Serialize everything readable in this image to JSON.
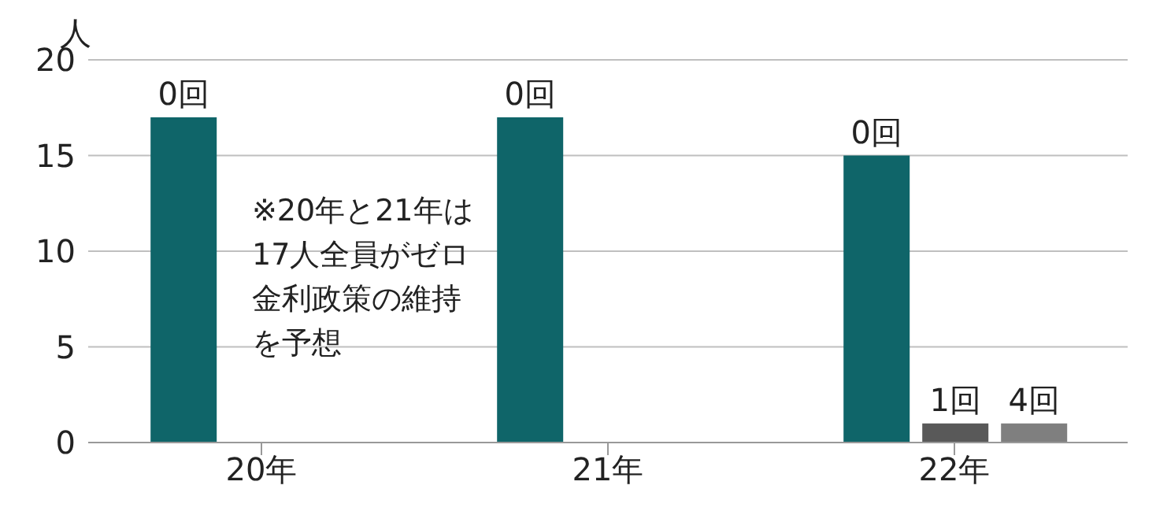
{
  "chart_data": {
    "type": "bar",
    "ylabel": "人",
    "categories": [
      "20年",
      "21年",
      "22年"
    ],
    "series": [
      {
        "name": "0回",
        "color": "#0f6569",
        "values": [
          17,
          17,
          15
        ]
      },
      {
        "name": "1回",
        "color": "#595959",
        "values": [
          null,
          null,
          1
        ]
      },
      {
        "name": "4回",
        "color": "#7f7f7f",
        "values": [
          null,
          null,
          1
        ]
      }
    ],
    "ylim": [
      0,
      20
    ],
    "yticks": [
      0,
      5,
      10,
      15,
      20
    ],
    "grid": "y",
    "annotations": [
      "※20年と21年は17人全員がゼロ金利政策の維持を予想"
    ]
  }
}
